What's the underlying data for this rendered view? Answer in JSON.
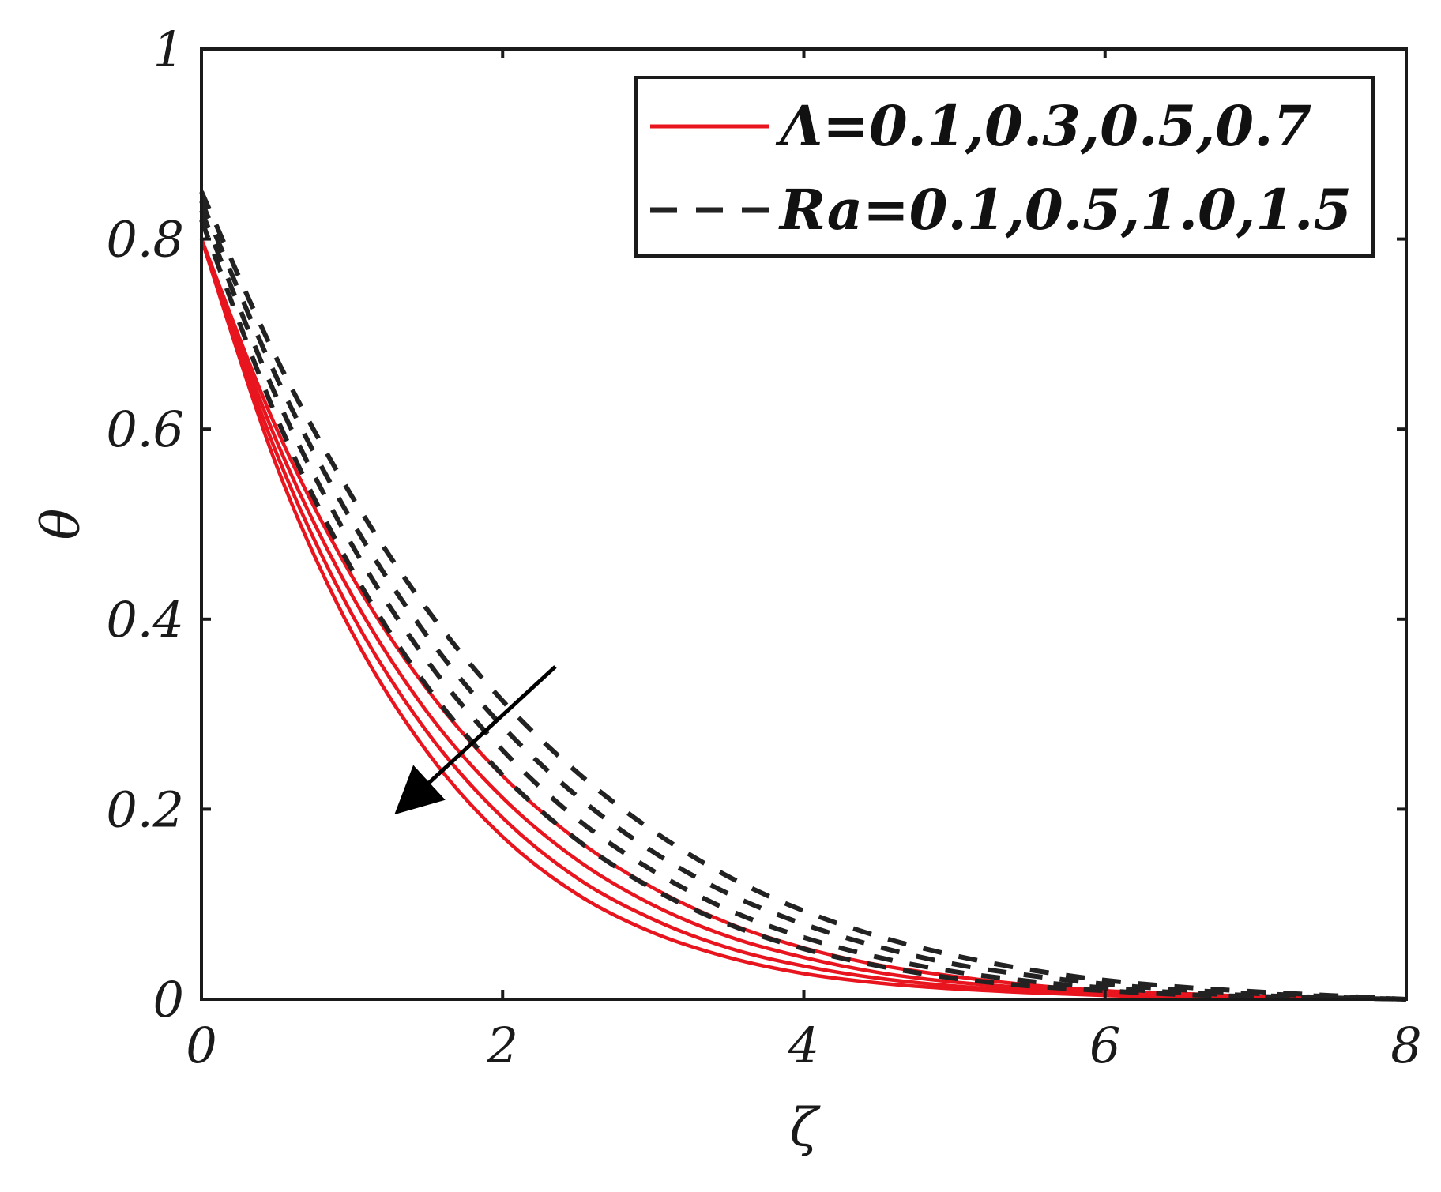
{
  "chart_data": {
    "type": "line",
    "title": "",
    "xlabel": "ζ",
    "ylabel": "θ",
    "xlim": [
      0,
      8
    ],
    "ylim": [
      0,
      1
    ],
    "xticks": [
      "0",
      "2",
      "4",
      "6",
      "8"
    ],
    "yticks": [
      "0",
      "0.2",
      "0.4",
      "0.6",
      "0.8",
      "1"
    ],
    "grid": false,
    "legend_position": "top-right",
    "legend": [
      {
        "label": "Λ=0.1,0.3,0.5,0.7",
        "style": "solid",
        "color": "#e8141e"
      },
      {
        "label": "Ra=0.1,0.5,1.0,1.5",
        "style": "dashed",
        "color": "#222222"
      }
    ],
    "x": [
      0,
      0.5,
      1,
      1.5,
      2,
      2.5,
      3,
      3.5,
      4,
      4.5,
      5,
      5.5,
      6,
      6.5,
      7,
      7.5,
      8
    ],
    "series": [
      {
        "group": "Λ",
        "style": "solid",
        "color": "#e8141e",
        "values": [
          0.8,
          0.561,
          0.386,
          0.26,
          0.171,
          0.11,
          0.07,
          0.044,
          0.027,
          0.017,
          0.011,
          0.007,
          0.004,
          0.002,
          0.0014,
          0.0006,
          0.0
        ]
      },
      {
        "group": "Λ",
        "style": "solid",
        "color": "#e8141e",
        "values": [
          0.8,
          0.574,
          0.405,
          0.281,
          0.191,
          0.127,
          0.084,
          0.054,
          0.035,
          0.022,
          0.014,
          0.009,
          0.005,
          0.003,
          0.002,
          0.001,
          0.0
        ]
      },
      {
        "group": "Λ",
        "style": "solid",
        "color": "#e8141e",
        "values": [
          0.8,
          0.587,
          0.425,
          0.302,
          0.212,
          0.146,
          0.099,
          0.066,
          0.044,
          0.028,
          0.018,
          0.012,
          0.007,
          0.004,
          0.002,
          0.001,
          0.0
        ]
      },
      {
        "group": "Λ",
        "style": "solid",
        "color": "#e8141e",
        "values": [
          0.8,
          0.6,
          0.445,
          0.326,
          0.235,
          0.167,
          0.117,
          0.08,
          0.054,
          0.036,
          0.024,
          0.015,
          0.009,
          0.006,
          0.003,
          0.0015,
          0.0
        ]
      },
      {
        "group": "Ra",
        "style": "dashed",
        "color": "#222222",
        "values": [
          0.82,
          0.612,
          0.452,
          0.329,
          0.236,
          0.167,
          0.116,
          0.079,
          0.053,
          0.035,
          0.022,
          0.014,
          0.009,
          0.005,
          0.003,
          0.0015,
          0.0
        ]
      },
      {
        "group": "Ra",
        "style": "dashed",
        "color": "#222222",
        "values": [
          0.83,
          0.633,
          0.478,
          0.356,
          0.262,
          0.189,
          0.135,
          0.094,
          0.065,
          0.044,
          0.029,
          0.019,
          0.012,
          0.007,
          0.004,
          0.002,
          0.0
        ]
      },
      {
        "group": "Ra",
        "style": "dashed",
        "color": "#222222",
        "values": [
          0.84,
          0.654,
          0.503,
          0.382,
          0.287,
          0.213,
          0.155,
          0.111,
          0.079,
          0.055,
          0.037,
          0.025,
          0.016,
          0.01,
          0.006,
          0.003,
          0.0
        ]
      },
      {
        "group": "Ra",
        "style": "dashed",
        "color": "#222222",
        "values": [
          0.85,
          0.674,
          0.529,
          0.41,
          0.314,
          0.238,
          0.177,
          0.129,
          0.093,
          0.066,
          0.046,
          0.031,
          0.02,
          0.013,
          0.008,
          0.004,
          0.0
        ]
      }
    ],
    "annotation_arrow": {
      "from": [
        2.35,
        0.35
      ],
      "to": [
        1.32,
        0.2
      ],
      "meaning": "increasing Λ and Ra"
    }
  }
}
